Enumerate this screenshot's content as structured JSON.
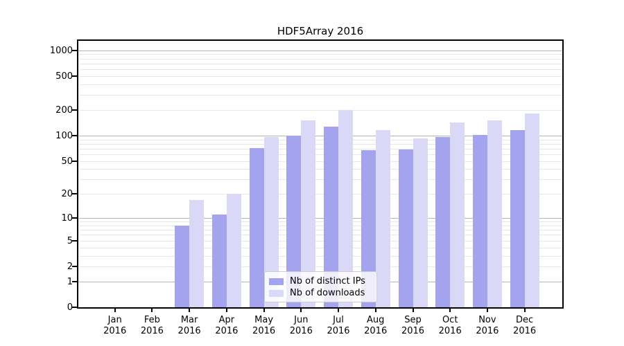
{
  "title": "HDF5Array 2016",
  "legend": {
    "items": [
      {
        "label": "Nb of distinct IPs",
        "color": "#a3a3ee"
      },
      {
        "label": "Nb of downloads",
        "color": "#d9d9f7"
      }
    ]
  },
  "colors": {
    "bar_distinct_ips": "#a3a3ee",
    "bar_downloads": "#d9d9f7",
    "grid_major": "#b4b4b4",
    "grid_minor": "#e6e6e6",
    "axis": "#000000"
  },
  "chart_data": {
    "type": "bar",
    "title": "HDF5Array 2016",
    "xlabel": "",
    "ylabel": "",
    "y_scale": "log10(value+1)",
    "ylim": [
      0,
      1300
    ],
    "grid": "on",
    "legend_position": "bottom-center-inside",
    "categories": [
      "Jan",
      "Feb",
      "Mar",
      "Apr",
      "May",
      "Jun",
      "Jul",
      "Aug",
      "Sep",
      "Oct",
      "Nov",
      "Dec"
    ],
    "year": "2016",
    "series": [
      {
        "name": "Nb of distinct IPs",
        "values": [
          0,
          0,
          8,
          11,
          71,
          99,
          127,
          67,
          68,
          97,
          102,
          117
        ]
      },
      {
        "name": "Nb of downloads",
        "values": [
          0,
          0,
          17,
          20,
          97,
          150,
          200,
          117,
          92,
          143,
          150,
          181
        ]
      }
    ],
    "y_ticks": [
      0,
      1,
      2,
      5,
      10,
      20,
      50,
      100,
      200,
      500,
      1000
    ],
    "grid_major_values": [
      1,
      10,
      100,
      1000
    ],
    "grid_minor_values": [
      2,
      3,
      4,
      5,
      6,
      7,
      8,
      9,
      20,
      30,
      40,
      50,
      60,
      70,
      80,
      90,
      200,
      300,
      400,
      500,
      600,
      700,
      800,
      900
    ]
  }
}
